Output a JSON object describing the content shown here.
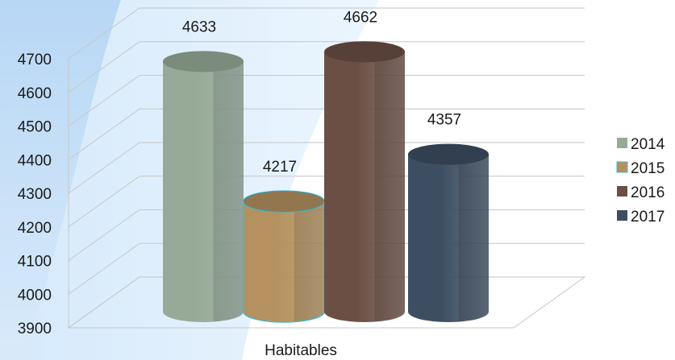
{
  "chart_data": {
    "type": "bar",
    "style": "3d-cylinder",
    "categories": [
      "Habitables"
    ],
    "series": [
      {
        "name": "2014",
        "values": [
          4633
        ],
        "color": "#97aa98"
      },
      {
        "name": "2015",
        "values": [
          4217
        ],
        "color": "#b4915e"
      },
      {
        "name": "2016",
        "values": [
          4662
        ],
        "color": "#6b4f45"
      },
      {
        "name": "2017",
        "values": [
          4357
        ],
        "color": "#3e4e62"
      }
    ],
    "yticks": [
      "3900",
      "4000",
      "4100",
      "4200",
      "4300",
      "4400",
      "4500",
      "4600",
      "4700"
    ],
    "ylim": [
      3900,
      4700
    ],
    "grid": true,
    "legend_position": "right"
  }
}
